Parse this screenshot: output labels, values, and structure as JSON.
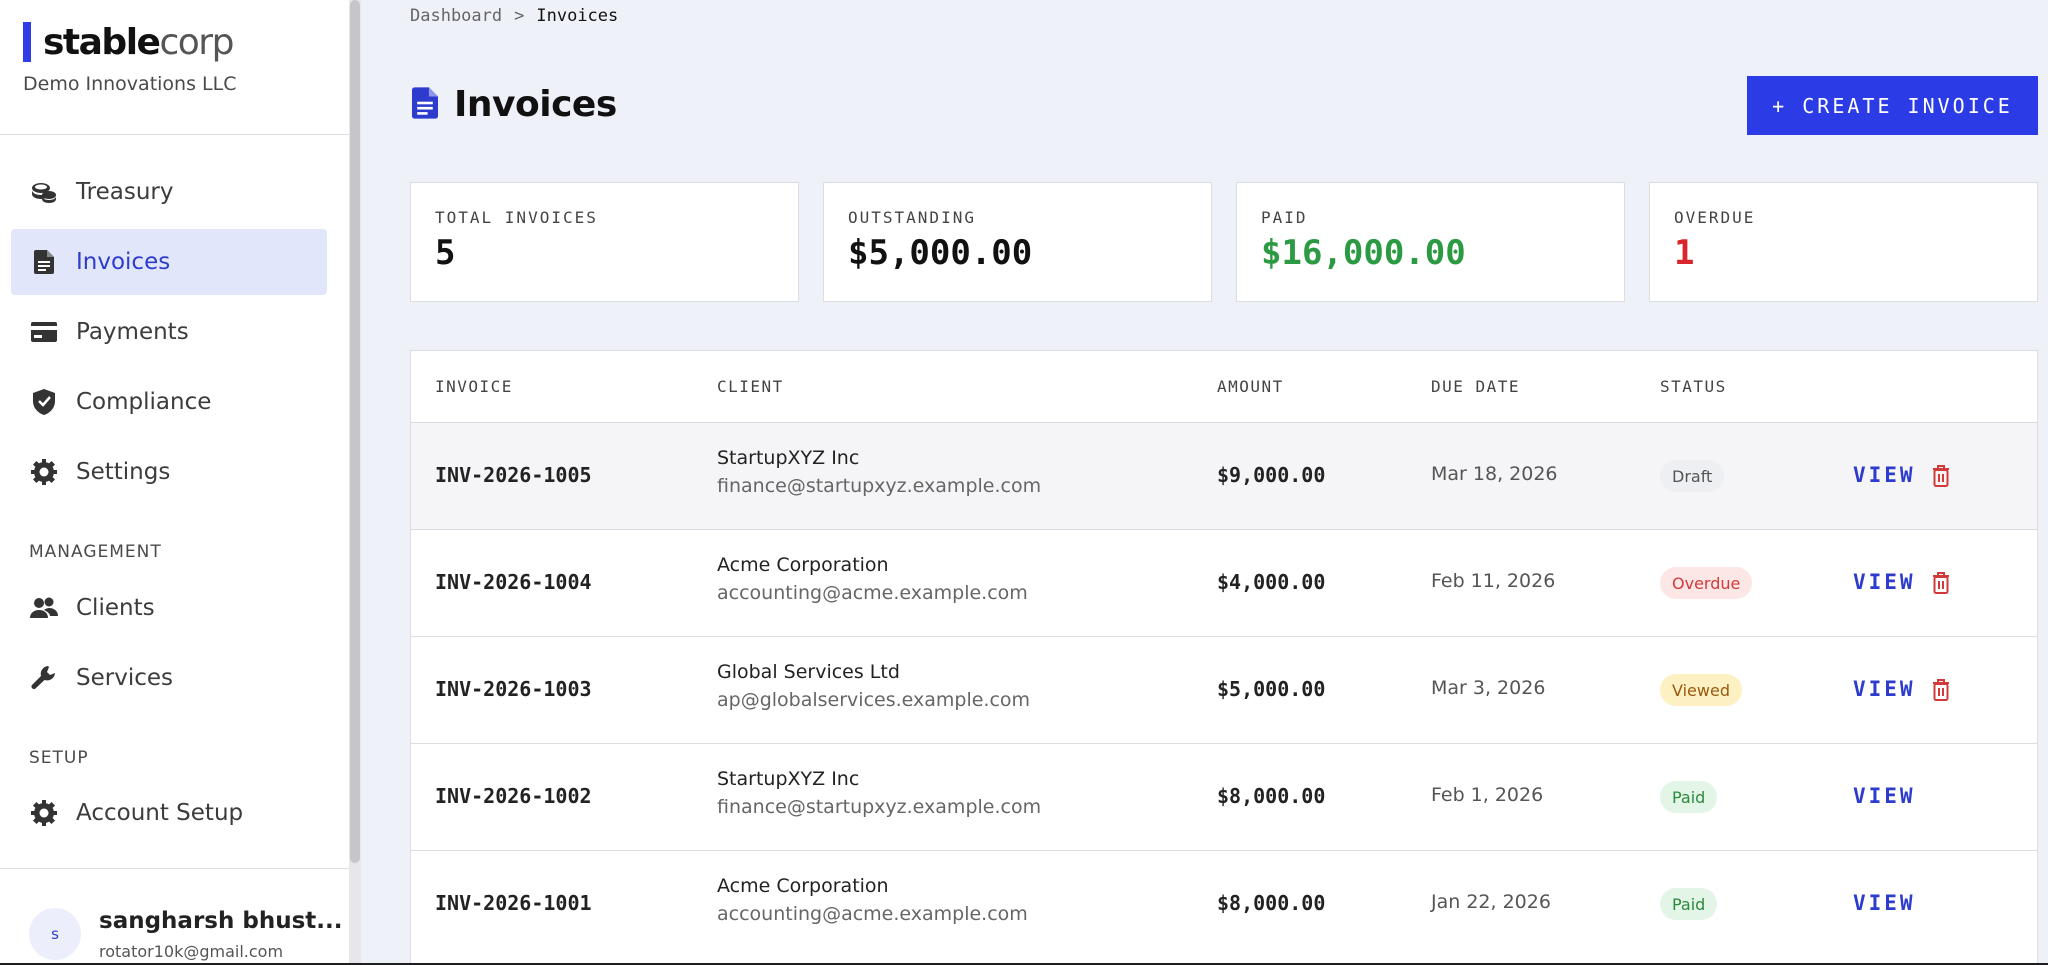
{
  "brand": {
    "name_bold": "stable",
    "name_light": "corp",
    "org": "Demo Innovations LLC",
    "accent_color": "#2f3de8"
  },
  "nav": {
    "items": [
      {
        "label": "Treasury",
        "icon": "coins-icon"
      },
      {
        "label": "Invoices",
        "icon": "document-icon",
        "active": true
      },
      {
        "label": "Payments",
        "icon": "credit-card-icon"
      },
      {
        "label": "Compliance",
        "icon": "shield-check-icon"
      },
      {
        "label": "Settings",
        "icon": "gear-icon"
      }
    ],
    "management_header": "MANAGEMENT",
    "management": [
      {
        "label": "Clients",
        "icon": "users-icon"
      },
      {
        "label": "Services",
        "icon": "wrench-icon"
      }
    ],
    "setup_header": "SETUP",
    "setup": [
      {
        "label": "Account Setup",
        "icon": "gear-icon"
      }
    ]
  },
  "user": {
    "initial": "s",
    "name": "sangharsh bhust...",
    "email": "rotator10k@gmail.com"
  },
  "breadcrumb": {
    "parent": "Dashboard",
    "separator": ">",
    "current": "Invoices"
  },
  "page": {
    "title": "Invoices",
    "icon": "document-icon",
    "create_button": "+ CREATE INVOICE"
  },
  "stats": [
    {
      "label": "TOTAL INVOICES",
      "value": "5",
      "tone": "default"
    },
    {
      "label": "OUTSTANDING",
      "value": "$5,000.00",
      "tone": "default"
    },
    {
      "label": "PAID",
      "value": "$16,000.00",
      "tone": "green"
    },
    {
      "label": "OVERDUE",
      "value": "1",
      "tone": "red"
    }
  ],
  "table": {
    "columns": [
      "INVOICE",
      "CLIENT",
      "AMOUNT",
      "DUE DATE",
      "STATUS"
    ],
    "view_label": "VIEW",
    "rows": [
      {
        "invoice": "INV-2026-1005",
        "client": "StartupXYZ Inc",
        "email": "finance@startupxyz.example.com",
        "amount": "$9,000.00",
        "due": "Mar 18, 2026",
        "status": "Draft",
        "deletable": true
      },
      {
        "invoice": "INV-2026-1004",
        "client": "Acme Corporation",
        "email": "accounting@acme.example.com",
        "amount": "$4,000.00",
        "due": "Feb 11, 2026",
        "status": "Overdue",
        "deletable": true
      },
      {
        "invoice": "INV-2026-1003",
        "client": "Global Services Ltd",
        "email": "ap@globalservices.example.com",
        "amount": "$5,000.00",
        "due": "Mar 3, 2026",
        "status": "Viewed",
        "deletable": true
      },
      {
        "invoice": "INV-2026-1002",
        "client": "StartupXYZ Inc",
        "email": "finance@startupxyz.example.com",
        "amount": "$8,000.00",
        "due": "Feb 1, 2026",
        "status": "Paid",
        "deletable": false
      },
      {
        "invoice": "INV-2026-1001",
        "client": "Acme Corporation",
        "email": "accounting@acme.example.com",
        "amount": "$8,000.00",
        "due": "Jan 22, 2026",
        "status": "Paid",
        "deletable": false
      }
    ]
  },
  "colors": {
    "accent": "#2b3be6",
    "paid_green": "#2b9a43",
    "overdue_red": "#d9252b",
    "page_bg": "#eff1f9"
  }
}
